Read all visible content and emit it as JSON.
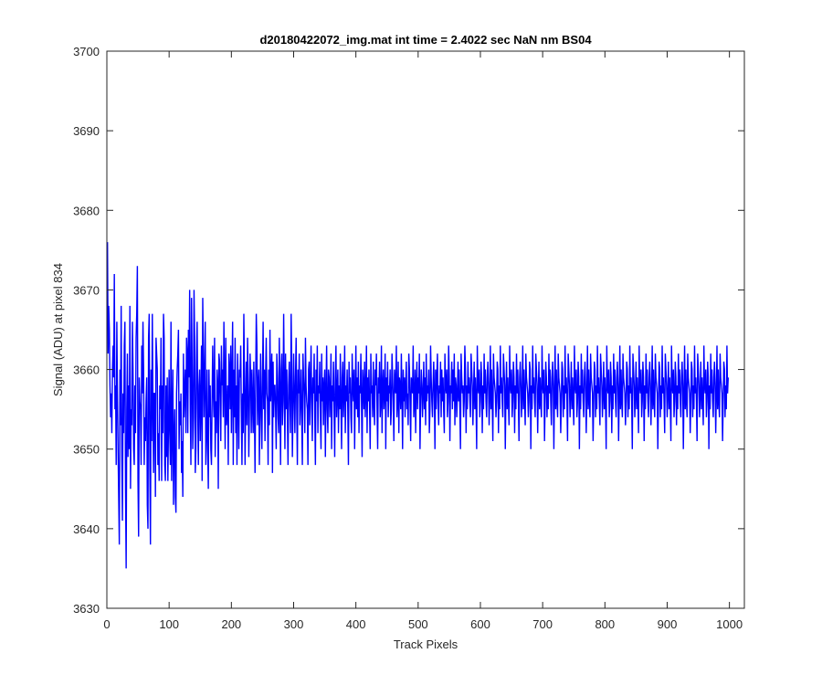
{
  "chart_data": {
    "type": "line",
    "title": "d20180422072_img.mat int time = 2.4022 sec  NaN nm BS04",
    "xlabel": "Track Pixels",
    "ylabel": "Signal (ADU) at pixel 834",
    "xlim": [
      0,
      1024
    ],
    "ylim": [
      3630,
      3700
    ],
    "xticks": [
      0,
      100,
      200,
      300,
      400,
      500,
      600,
      700,
      800,
      900,
      1000
    ],
    "yticks": [
      3630,
      3640,
      3650,
      3660,
      3670,
      3680,
      3690,
      3700
    ],
    "grid": false,
    "legend": "none",
    "series_color": "#0000ff",
    "axis_color": "#262626",
    "series": [
      {
        "x_start": 1,
        "x_step": 1,
        "values": [
          3676,
          3662,
          3668,
          3665,
          3658,
          3654,
          3657,
          3652,
          3660,
          3663,
          3659,
          3672,
          3655,
          3658,
          3648,
          3666,
          3657,
          3650,
          3644,
          3638,
          3660,
          3653,
          3668,
          3649,
          3641,
          3657,
          3652,
          3663,
          3666,
          3645,
          3635,
          3655,
          3662,
          3649,
          3658,
          3650,
          3668,
          3645,
          3655,
          3653,
          3666,
          3660,
          3650,
          3648,
          3658,
          3652,
          3664,
          3667,
          3673,
          3646,
          3639,
          3659,
          3656,
          3655,
          3648,
          3663,
          3657,
          3666,
          3660,
          3648,
          3654,
          3651,
          3656,
          3659,
          3643,
          3640,
          3664,
          3667,
          3648,
          3638,
          3660,
          3651,
          3667,
          3656,
          3647,
          3657,
          3657,
          3644,
          3664,
          3662,
          3660,
          3648,
          3652,
          3646,
          3658,
          3655,
          3664,
          3646,
          3658,
          3652,
          3667,
          3664,
          3648,
          3646,
          3658,
          3649,
          3659,
          3646,
          3653,
          3660,
          3652,
          3648,
          3666,
          3646,
          3653,
          3660,
          3643,
          3651,
          3655,
          3644,
          3642,
          3657,
          3660,
          3662,
          3665,
          3650,
          3656,
          3653,
          3657,
          3647,
          3651,
          3644,
          3662,
          3654,
          3657,
          3660,
          3652,
          3664,
          3662,
          3652,
          3665,
          3659,
          3670,
          3655,
          3648,
          3669,
          3660,
          3650,
          3654,
          3670,
          3664,
          3647,
          3650,
          3661,
          3666,
          3655,
          3648,
          3658,
          3660,
          3651,
          3656,
          3663,
          3646,
          3669,
          3662,
          3654,
          3659,
          3666,
          3648,
          3652,
          3660,
          3650,
          3645,
          3660,
          3654,
          3658,
          3650,
          3648,
          3656,
          3663,
          3657,
          3654,
          3664,
          3649,
          3656,
          3652,
          3660,
          3658,
          3645,
          3662,
          3661,
          3656,
          3651,
          3663,
          3658,
          3660,
          3654,
          3666,
          3658,
          3650,
          3664,
          3653,
          3655,
          3658,
          3648,
          3662,
          3660,
          3655,
          3663,
          3652,
          3659,
          3666,
          3648,
          3660,
          3654,
          3664,
          3652,
          3658,
          3648,
          3662,
          3657,
          3650,
          3660,
          3659,
          3663,
          3655,
          3648,
          3657,
          3652,
          3667,
          3660,
          3648,
          3656,
          3661,
          3653,
          3664,
          3658,
          3649,
          3655,
          3662,
          3659,
          3652,
          3660,
          3656,
          3652,
          3661,
          3655,
          3647,
          3658,
          3667,
          3663,
          3653,
          3658,
          3660,
          3648,
          3656,
          3662,
          3654,
          3650,
          3659,
          3666,
          3655,
          3660,
          3651,
          3659,
          3664,
          3657,
          3656,
          3648,
          3660,
          3653,
          3665,
          3656,
          3659,
          3662,
          3647,
          3661,
          3654,
          3658,
          3658,
          3655,
          3650,
          3662,
          3659,
          3654,
          3652,
          3664,
          3657,
          3648,
          3660,
          3662,
          3653,
          3656,
          3667,
          3658,
          3650,
          3662,
          3655,
          3660,
          3654,
          3648,
          3658,
          3661,
          3656,
          3652,
          3667,
          3660,
          3649,
          3655,
          3662,
          3657,
          3652,
          3659,
          3664,
          3655,
          3648,
          3660,
          3657,
          3662,
          3653,
          3656,
          3660,
          3654,
          3648,
          3662,
          3659,
          3657,
          3652,
          3664,
          3658,
          3656,
          3655,
          3648,
          3660,
          3661,
          3653,
          3658,
          3663,
          3656,
          3651,
          3659,
          3657,
          3662,
          3654,
          3648,
          3660,
          3656,
          3663,
          3652,
          3658,
          3657,
          3661,
          3654,
          3650,
          3662,
          3656,
          3659,
          3653,
          3658,
          3660,
          3649,
          3657,
          3663,
          3655,
          3652,
          3660,
          3659,
          3654,
          3657,
          3662,
          3650,
          3658,
          3656,
          3661,
          3655,
          3649,
          3659,
          3663,
          3654,
          3657,
          3660,
          3652,
          3658,
          3655,
          3662,
          3656,
          3650,
          3659,
          3661,
          3654,
          3657,
          3663,
          3652,
          3658,
          3656,
          3660,
          3655,
          3648,
          3661,
          3657,
          3659,
          3654,
          3652,
          3662,
          3658,
          3656,
          3660,
          3650,
          3657,
          3663,
          3655,
          3659,
          3654,
          3661,
          3652,
          3658,
          3657,
          3662,
          3656,
          3649,
          3660,
          3658,
          3655,
          3661,
          3654,
          3657,
          3663,
          3652,
          3659,
          3656,
          3660,
          3655,
          3650,
          3662,
          3657,
          3658,
          3654,
          3661,
          3656,
          3653,
          3660,
          3658,
          3662,
          3655,
          3650,
          3659,
          3657,
          3661,
          3654,
          3656,
          3663,
          3652,
          3658,
          3660,
          3655,
          3657,
          3662,
          3650,
          3659,
          3656,
          3661,
          3654,
          3658,
          3657,
          3660,
          3653,
          3655,
          3662,
          3659,
          3656,
          3651,
          3660,
          3658,
          3657,
          3663,
          3654,
          3656,
          3661,
          3652,
          3659,
          3658,
          3655,
          3662,
          3657,
          3650,
          3660,
          3656,
          3659,
          3654,
          3658,
          3661,
          3655,
          3657,
          3653,
          3662,
          3660,
          3656,
          3651,
          3659,
          3658,
          3657,
          3663,
          3654,
          3656,
          3660,
          3652,
          3658,
          3661,
          3655,
          3659,
          3657,
          3662,
          3650,
          3656,
          3660,
          3658,
          3654,
          3657,
          3661,
          3655,
          3659,
          3653,
          3662,
          3656,
          3658,
          3657,
          3660,
          3652,
          3655,
          3663,
          3659,
          3656,
          3654,
          3658,
          3661,
          3657,
          3650,
          3660,
          3655,
          3659,
          3662,
          3656,
          3653,
          3658,
          3657,
          3661,
          3654,
          3660,
          3656,
          3659,
          3655,
          3652,
          3662,
          3658,
          3657,
          3660,
          3654,
          3656,
          3663,
          3659,
          3651,
          3658,
          3657,
          3661,
          3655,
          3660,
          3656,
          3662,
          3653,
          3659,
          3658,
          3654,
          3657,
          3661,
          3656,
          3660,
          3655,
          3650,
          3662,
          3659,
          3657,
          3658,
          3654,
          3656,
          3663,
          3660,
          3652,
          3658,
          3655,
          3661,
          3657,
          3659,
          3656,
          3654,
          3662,
          3660,
          3658,
          3653,
          3657,
          3661,
          3655,
          3659,
          3656,
          3650,
          3663,
          3658,
          3657,
          3660,
          3654,
          3656,
          3661,
          3659,
          3652,
          3658,
          3655,
          3662,
          3657,
          3660,
          3656,
          3654,
          3659,
          3661,
          3658,
          3653,
          3657,
          3663,
          3655,
          3660,
          3656,
          3651,
          3662,
          3659,
          3658,
          3657,
          3654,
          3656,
          3661,
          3660,
          3652,
          3658,
          3655,
          3663,
          3657,
          3659,
          3656,
          3654,
          3662,
          3660,
          3658,
          3650,
          3657,
          3661,
          3655,
          3659,
          3656,
          3653,
          3663,
          3658,
          3657,
          3660,
          3654,
          3656,
          3661,
          3659,
          3652,
          3658,
          3655,
          3662,
          3657,
          3660,
          3656,
          3651,
          3659,
          3661,
          3658,
          3654,
          3657,
          3663,
          3655,
          3660,
          3656,
          3653,
          3662,
          3659,
          3658,
          3657,
          3654,
          3656,
          3661,
          3660,
          3650,
          3658,
          3655,
          3663,
          3657,
          3659,
          3656,
          3654,
          3662,
          3660,
          3658,
          3652,
          3657,
          3661,
          3655,
          3659,
          3656,
          3654,
          3663,
          3658,
          3657,
          3660,
          3651,
          3656,
          3661,
          3659,
          3654,
          3658,
          3655,
          3662,
          3657,
          3660,
          3656,
          3653,
          3659,
          3661,
          3658,
          3650,
          3657,
          3663,
          3655,
          3660,
          3656,
          3654,
          3662,
          3659,
          3658,
          3657,
          3652,
          3656,
          3661,
          3660,
          3654,
          3658,
          3655,
          3663,
          3657,
          3659,
          3656,
          3651,
          3662,
          3660,
          3658,
          3654,
          3657,
          3661,
          3655,
          3659,
          3656,
          3653,
          3663,
          3658,
          3657,
          3660,
          3654,
          3656,
          3661,
          3659,
          3650,
          3658,
          3655,
          3662,
          3657,
          3660,
          3656,
          3654,
          3659,
          3661,
          3658,
          3652,
          3657,
          3663,
          3655,
          3660,
          3656,
          3654,
          3662,
          3659,
          3658,
          3657,
          3651,
          3656,
          3661,
          3660,
          3654,
          3658,
          3655,
          3663,
          3657,
          3659,
          3656,
          3653,
          3662,
          3660,
          3658,
          3654,
          3657,
          3661,
          3655,
          3659,
          3656,
          3650,
          3663,
          3658,
          3657,
          3660,
          3654,
          3656,
          3661,
          3659,
          3652,
          3658,
          3655,
          3662,
          3657,
          3660,
          3656,
          3654,
          3659,
          3661,
          3658,
          3651,
          3657,
          3663,
          3655,
          3660,
          3656,
          3654,
          3662,
          3659,
          3658,
          3657,
          3653,
          3656,
          3661,
          3660,
          3654,
          3658,
          3655,
          3663,
          3657,
          3659,
          3656,
          3650,
          3662,
          3660,
          3658,
          3654,
          3657,
          3661,
          3655,
          3659,
          3656,
          3652,
          3663,
          3658,
          3657,
          3660,
          3654,
          3656,
          3661,
          3659,
          3651,
          3658,
          3655,
          3662,
          3657,
          3660,
          3656,
          3654,
          3659,
          3661,
          3658,
          3653,
          3657,
          3663,
          3655,
          3660,
          3656,
          3654,
          3662,
          3659,
          3658,
          3657,
          3650,
          3656,
          3661,
          3660,
          3654,
          3658,
          3655,
          3663,
          3657,
          3659,
          3656,
          3652,
          3662,
          3660,
          3658,
          3654,
          3657,
          3661,
          3655,
          3659,
          3656,
          3651,
          3663,
          3658,
          3657,
          3660,
          3654,
          3656,
          3661,
          3659,
          3653,
          3658,
          3655,
          3662,
          3657,
          3660,
          3656,
          3654,
          3659,
          3661,
          3658,
          3650,
          3657,
          3663,
          3655,
          3660,
          3656,
          3654,
          3662,
          3659,
          3658,
          3657,
          3652,
          3656,
          3661,
          3660,
          3654,
          3658,
          3655,
          3663,
          3657,
          3659,
          3656,
          3651,
          3662,
          3660,
          3658,
          3654,
          3657,
          3661,
          3655,
          3659,
          3656,
          3653,
          3663,
          3658,
          3657,
          3660,
          3654,
          3656,
          3661,
          3659,
          3650,
          3658,
          3655,
          3662,
          3657,
          3660,
          3656,
          3654,
          3659,
          3661,
          3658,
          3652,
          3657,
          3663,
          3655,
          3660,
          3656,
          3654,
          3662,
          3659,
          3658,
          3657,
          3651,
          3656,
          3661,
          3660,
          3654,
          3658,
          3655,
          3663,
          3657,
          3659
        ]
      }
    ]
  }
}
